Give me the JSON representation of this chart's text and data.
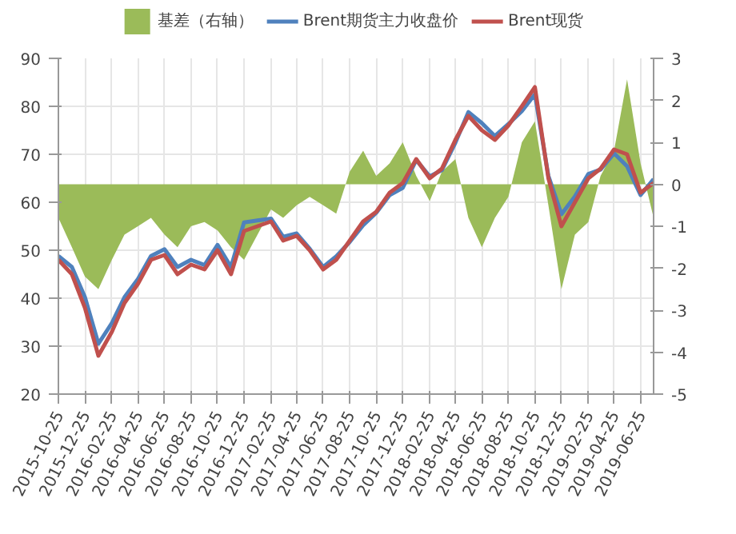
{
  "chart_data": {
    "type": "line",
    "x": [
      "2015-10-25",
      "2015-11-25",
      "2015-12-25",
      "2016-01-25",
      "2016-02-25",
      "2016-03-25",
      "2016-04-25",
      "2016-05-25",
      "2016-06-25",
      "2016-07-25",
      "2016-08-25",
      "2016-09-25",
      "2016-10-25",
      "2016-11-25",
      "2016-12-25",
      "2017-01-25",
      "2017-02-25",
      "2017-03-25",
      "2017-04-25",
      "2017-05-25",
      "2017-06-25",
      "2017-07-25",
      "2017-08-25",
      "2017-09-25",
      "2017-10-25",
      "2017-11-25",
      "2017-12-25",
      "2018-01-25",
      "2018-02-25",
      "2018-03-25",
      "2018-04-25",
      "2018-05-25",
      "2018-06-25",
      "2018-07-25",
      "2018-08-25",
      "2018-09-25",
      "2018-10-25",
      "2018-11-25",
      "2018-12-25",
      "2019-01-25",
      "2019-02-25",
      "2019-03-25",
      "2019-04-25",
      "2019-05-25",
      "2019-06-25",
      "2019-07-25"
    ],
    "series": [
      {
        "name": "基差（右轴）",
        "type": "area",
        "axis": "y2",
        "color": "#9bbb59",
        "values": [
          -0.8,
          -1.5,
          -2.2,
          -2.5,
          -1.8,
          -1.2,
          -1.0,
          -0.8,
          -1.2,
          -1.5,
          -1.0,
          -0.9,
          -1.1,
          -1.5,
          -1.8,
          -1.2,
          -0.6,
          -0.8,
          -0.5,
          -0.3,
          -0.5,
          -0.7,
          0.3,
          0.8,
          0.2,
          0.5,
          1.0,
          0.2,
          -0.4,
          0.3,
          0.6,
          -0.8,
          -1.5,
          -0.8,
          -0.3,
          1.0,
          1.5,
          -0.5,
          -2.5,
          -1.2,
          -0.9,
          0.2,
          0.8,
          2.5,
          0.5,
          -0.8
        ]
      },
      {
        "name": "Brent期货主力收盘价",
        "color": "#4f81bd",
        "values": [
          48.8,
          46.5,
          40.2,
          30.5,
          34.8,
          40.2,
          44,
          48.8,
          50.2,
          46.5,
          48,
          46.9,
          51.1,
          46.5,
          55.8,
          56.2,
          56.6,
          52.8,
          53.5,
          50.3,
          46.5,
          48.7,
          51.7,
          55.2,
          57.8,
          61.5,
          63,
          68.8,
          65.4,
          66.7,
          72.4,
          78.8,
          76.5,
          73.8,
          76.3,
          79,
          82.5,
          65.5,
          57.5,
          61.2,
          65.9,
          66.8,
          70.2,
          67.5,
          61.5,
          64.8
        ]
      },
      {
        "name": "Brent现货",
        "color": "#c0504d",
        "values": [
          48,
          45,
          38,
          28,
          33,
          39,
          43,
          48,
          49,
          45,
          47,
          46,
          50,
          45,
          54,
          55,
          56,
          52,
          53,
          50,
          46,
          48,
          52,
          56,
          58,
          62,
          64,
          69,
          65,
          67,
          73,
          78,
          75,
          73,
          76,
          80,
          84,
          65,
          55,
          60,
          65,
          67,
          71,
          70,
          62,
          64
        ]
      }
    ],
    "xlim": [
      "2015-10-25",
      "2019-07-25"
    ],
    "xticks": [
      "2015-10-25",
      "2015-12-25",
      "2016-02-25",
      "2016-04-25",
      "2016-06-25",
      "2016-08-25",
      "2016-10-25",
      "2016-12-25",
      "2017-02-25",
      "2017-04-25",
      "2017-06-25",
      "2017-08-25",
      "2017-10-25",
      "2017-12-25",
      "2018-02-25",
      "2018-04-25",
      "2018-06-25",
      "2018-08-25",
      "2018-10-25",
      "2018-12-25",
      "2019-02-25",
      "2019-04-25",
      "2019-06-25"
    ],
    "ylim": [
      20,
      90
    ],
    "yticks": [
      20,
      30,
      40,
      50,
      60,
      70,
      80,
      90
    ],
    "y2lim": [
      -5,
      3
    ],
    "y2ticks": [
      -5,
      -4,
      -3,
      -2,
      -1,
      0,
      1,
      2,
      3
    ],
    "grid": true,
    "legend": "top"
  }
}
